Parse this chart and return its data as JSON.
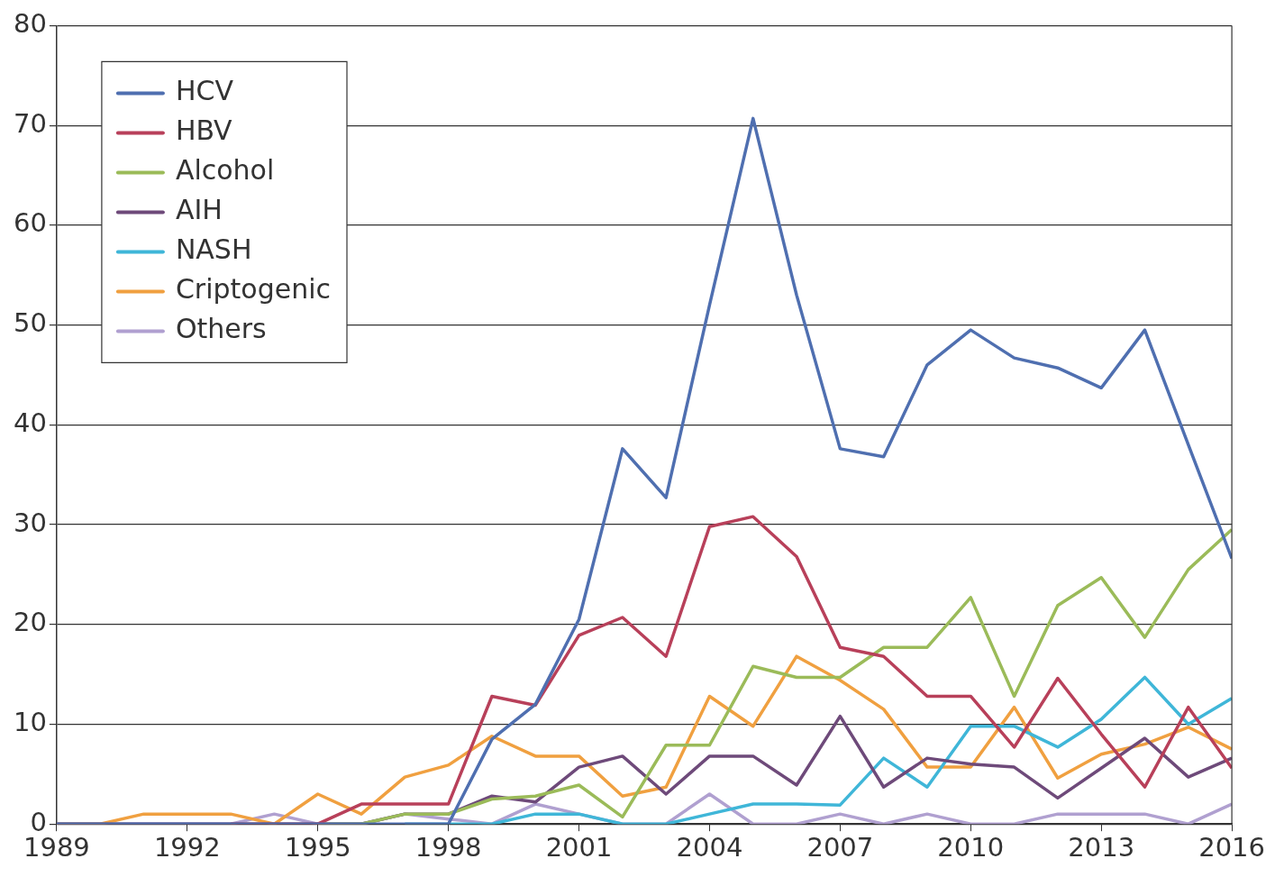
{
  "chart_data": {
    "type": "line",
    "x": [
      1989,
      1990,
      1991,
      1992,
      1993,
      1994,
      1995,
      1996,
      1997,
      1998,
      1999,
      2000,
      2001,
      2002,
      2003,
      2004,
      2005,
      2006,
      2007,
      2008,
      2009,
      2010,
      2011,
      2012,
      2013,
      2014,
      2015,
      2016
    ],
    "xlim": [
      1989,
      2016
    ],
    "xticks": [
      1989,
      1992,
      1995,
      1998,
      2001,
      2004,
      2007,
      2010,
      2013,
      2016
    ],
    "ylim": [
      0,
      80
    ],
    "yticks": [
      0,
      10,
      20,
      30,
      40,
      50,
      60,
      70,
      80
    ],
    "grid": "y",
    "legend": "top left",
    "marker": "none",
    "line_style": "solid",
    "series": [
      {
        "name": "HCV",
        "color": "#4f6fb0",
        "values": [
          0,
          0,
          0,
          0,
          0,
          0,
          0,
          0,
          0,
          0,
          8.5,
          12,
          20.5,
          37.6,
          32.7,
          52,
          70.7,
          53,
          37.6,
          36.8,
          46,
          49.5,
          46.7,
          45.7,
          43.7,
          49.5,
          38,
          26.6
        ]
      },
      {
        "name": "HBV",
        "color": "#b8405a",
        "values": [
          null,
          null,
          null,
          null,
          0,
          0,
          0,
          2,
          2,
          2,
          12.8,
          11.9,
          18.9,
          20.7,
          16.8,
          29.8,
          30.8,
          26.8,
          17.7,
          16.8,
          12.8,
          12.8,
          7.7,
          14.6,
          9,
          3.7,
          11.7,
          5.6
        ]
      },
      {
        "name": "Alcohol",
        "color": "#9bbb59",
        "values": [
          null,
          null,
          null,
          null,
          null,
          null,
          0,
          0,
          1,
          1,
          2.5,
          2.8,
          3.9,
          0.7,
          7.9,
          7.9,
          15.8,
          14.7,
          14.7,
          17.7,
          17.7,
          22.7,
          12.8,
          21.9,
          24.7,
          18.7,
          25.5,
          29.5
        ]
      },
      {
        "name": "AIH",
        "color": "#6e4a7a",
        "values": [
          0,
          0,
          0,
          0,
          0,
          0,
          0,
          0,
          1,
          1,
          2.8,
          2.2,
          5.7,
          6.8,
          3,
          6.8,
          6.8,
          3.9,
          10.8,
          3.7,
          6.6,
          6,
          5.7,
          2.6,
          5.6,
          8.6,
          4.7,
          6.6
        ]
      },
      {
        "name": "NASH",
        "color": "#3fb6d8",
        "values": [
          null,
          null,
          null,
          null,
          null,
          null,
          null,
          null,
          0,
          0,
          0,
          1,
          1,
          0,
          0,
          1,
          2,
          2,
          1.9,
          6.6,
          3.7,
          9.8,
          9.8,
          7.7,
          10.5,
          14.7,
          10,
          12.6
        ]
      },
      {
        "name": "Criptogenic",
        "color": "#f0a040",
        "values": [
          0,
          0,
          1,
          1,
          1,
          0,
          3,
          1,
          4.7,
          5.9,
          8.8,
          6.8,
          6.8,
          2.8,
          3.7,
          12.8,
          9.8,
          16.8,
          14.4,
          11.5,
          5.7,
          5.7,
          11.7,
          4.6,
          7,
          8,
          9.7,
          7.5
        ]
      },
      {
        "name": "Others",
        "color": "#b0a0d0",
        "values": [
          0,
          0,
          0,
          0,
          0,
          1,
          0,
          0,
          1,
          0.5,
          0,
          2,
          1,
          0,
          0,
          3,
          0,
          0,
          1,
          0,
          1,
          0,
          0,
          1,
          1,
          1,
          0,
          2
        ]
      }
    ]
  }
}
